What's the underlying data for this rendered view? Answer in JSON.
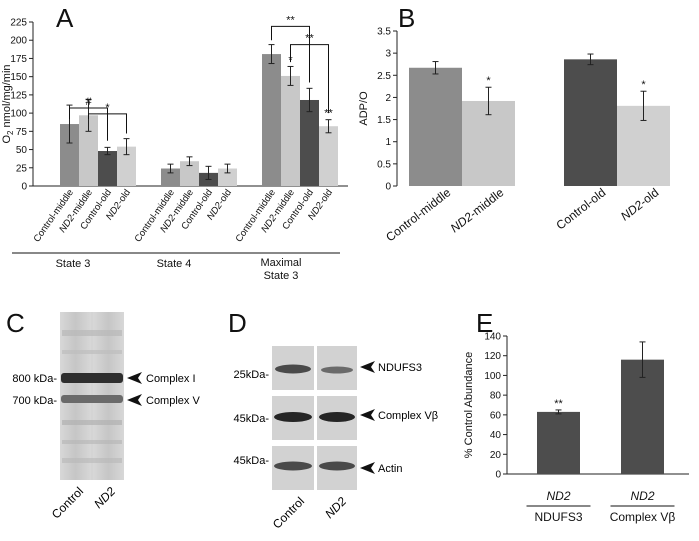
{
  "colors": {
    "control_middle": "#8c8c8c",
    "nd2_middle": "#c8c8c8",
    "control_old": "#4d4d4d",
    "nd2_old": "#d0d0d0",
    "panel_e_bar": "#4d4d4d",
    "axis": "#222222"
  },
  "panels": {
    "a": "A",
    "b": "B",
    "c": "C",
    "d": "D",
    "e": "E"
  },
  "chart_data": [
    {
      "panel": "A",
      "type": "bar",
      "ylabel_prefix": "O",
      "ylabel_sub": "2",
      "ylabel_suffix": " nmol/mg/min",
      "ylim": [
        0,
        225
      ],
      "yticks": [
        0,
        25,
        50,
        75,
        100,
        125,
        150,
        175,
        200,
        225
      ],
      "yticklabels": [
        "0",
        "25",
        "50",
        "75",
        "100",
        "125",
        "150",
        "175",
        "200",
        "225"
      ],
      "categories": [
        {
          "prefix": "Control",
          "suffix": "-middle"
        },
        {
          "prefix": "ND2",
          "suffix": "-middle"
        },
        {
          "prefix": "Control",
          "suffix": "-old"
        },
        {
          "prefix": "ND2",
          "suffix": "-old"
        }
      ],
      "groups": [
        {
          "line1": "State 3",
          "line2": "",
          "values": [
            85,
            97,
            48,
            54
          ],
          "errors": [
            26,
            22,
            5,
            11
          ]
        },
        {
          "line1": "State 4",
          "line2": "",
          "values": [
            24,
            34,
            18,
            24
          ],
          "errors": [
            6,
            6,
            9,
            6
          ]
        },
        {
          "line1": "Maximal",
          "line2": "State 3",
          "values": [
            181,
            151,
            118,
            82
          ],
          "errors": [
            13,
            13,
            16,
            9
          ]
        }
      ],
      "annotations": {
        "star_nd2_middle_max": "*",
        "star_nd2_old_max": "**",
        "bracket_hash": "#",
        "bracket_star": "*",
        "bracket_top": "**",
        "bracket_mid": "**"
      }
    },
    {
      "panel": "B",
      "type": "bar",
      "ylabel": "ADP/O",
      "ylim": [
        0,
        3.5
      ],
      "yticks": [
        0,
        0.5,
        1,
        1.5,
        2,
        2.5,
        3,
        3.5
      ],
      "yticklabels": [
        "0",
        "0.5",
        "1",
        "1.5",
        "2",
        "2.5",
        "3",
        "3.5"
      ],
      "categories": [
        {
          "prefix": "Control",
          "suffix": "-middle"
        },
        {
          "prefix": "ND2",
          "suffix": "-middle"
        },
        {
          "prefix": "Control",
          "suffix": "-old"
        },
        {
          "prefix": "ND2",
          "suffix": "-old"
        }
      ],
      "values": [
        2.67,
        1.92,
        2.86,
        1.81
      ],
      "errors": [
        0.14,
        0.31,
        0.12,
        0.33
      ],
      "annotations": [
        "",
        "*",
        "",
        "*"
      ]
    },
    {
      "panel": "E",
      "type": "bar",
      "ylabel": "% Control Abundance",
      "ylim": [
        0,
        140
      ],
      "yticks": [
        0,
        20,
        40,
        60,
        80,
        100,
        120,
        140
      ],
      "yticklabels": [
        "0",
        "20",
        "40",
        "60",
        "80",
        "100",
        "120",
        "140"
      ],
      "categories": [
        {
          "top": "ND2",
          "bottom": "NDUFS3"
        },
        {
          "top": "ND2",
          "bottom": "Complex Vβ"
        }
      ],
      "values": [
        63,
        116
      ],
      "errors": [
        2,
        18
      ],
      "annotations": [
        "**",
        ""
      ]
    }
  ],
  "blot_c": {
    "marker_labels": [
      "800 kDa-",
      "700 kDa-"
    ],
    "band_labels": [
      "Complex I",
      "Complex V"
    ],
    "lanes": [
      "Control",
      "ND2"
    ]
  },
  "blot_d": {
    "rows": [
      {
        "kda": "25kDa-",
        "label": "NDUFS3"
      },
      {
        "kda": "45kDa-",
        "label": "Complex Vβ"
      },
      {
        "kda": "45kDa-",
        "label": "Actin"
      }
    ],
    "lanes": [
      "Control",
      "ND2"
    ]
  }
}
